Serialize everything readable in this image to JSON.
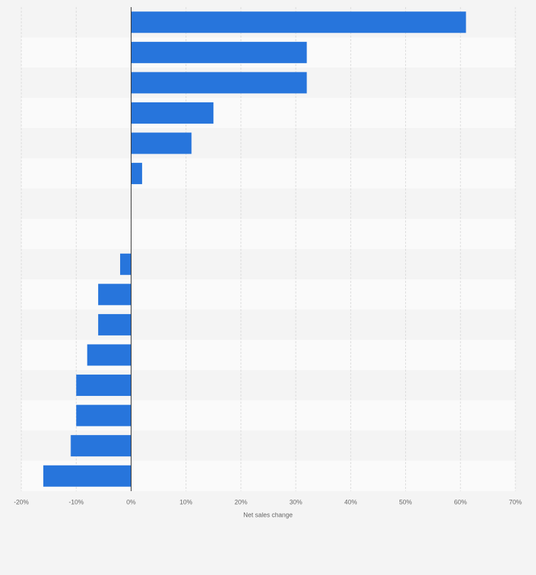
{
  "chart_data": {
    "type": "barh",
    "categories": [
      null,
      null,
      null,
      null,
      null,
      null,
      null,
      null,
      null,
      null,
      null,
      null,
      null,
      null,
      null,
      null
    ],
    "values": [
      61,
      32,
      32,
      15,
      11,
      2,
      0,
      0,
      -2,
      -6,
      -6,
      -8,
      -10,
      -10,
      -11,
      -16
    ],
    "color": "#2775dc",
    "xlabel": "Net sales change",
    "xlim": [
      -20,
      70
    ],
    "xticks": [
      {
        "value": -20,
        "label": "-20%"
      },
      {
        "value": -10,
        "label": "-10%"
      },
      {
        "value": 0,
        "label": "0%"
      },
      {
        "value": 10,
        "label": "10%"
      },
      {
        "value": 20,
        "label": "20%"
      },
      {
        "value": 30,
        "label": "30%"
      },
      {
        "value": 40,
        "label": "40%"
      },
      {
        "value": 50,
        "label": "50%"
      },
      {
        "value": 60,
        "label": "60%"
      },
      {
        "value": 70,
        "label": "70%"
      }
    ],
    "grid": true
  }
}
